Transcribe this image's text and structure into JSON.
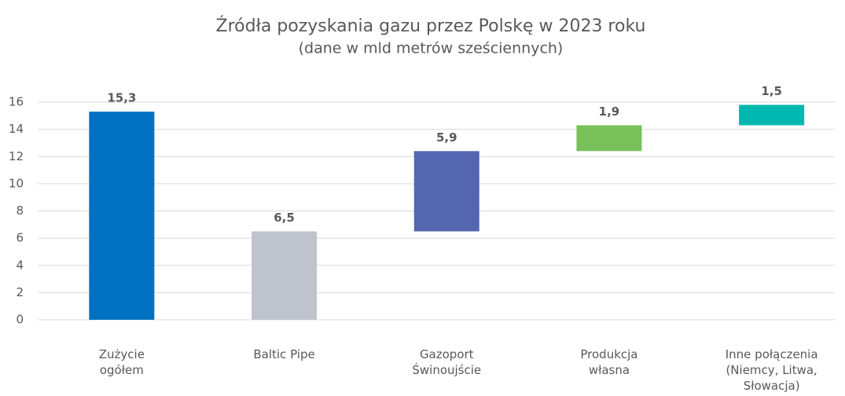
{
  "chart_data": {
    "type": "waterfall",
    "title": "Źródła pozyskania gazu przez Polskę w 2023 roku",
    "subtitle": "(dane w mld metrów sześciennych)",
    "categories": [
      [
        "Zużycie",
        "ogółem"
      ],
      [
        "Baltic Pipe"
      ],
      [
        "Gazoport",
        "Świnoujście"
      ],
      [
        "Produkcja",
        "własna"
      ],
      [
        "Inne połączenia",
        "(Niemcy, Litwa,",
        "Słowacja)"
      ]
    ],
    "values": [
      15.3,
      6.5,
      5.9,
      1.9,
      1.5
    ],
    "value_labels": [
      "15,3",
      "6,5",
      "5,9",
      "1,9",
      "1,5"
    ],
    "measures": [
      "absolute",
      "relative",
      "relative",
      "relative",
      "relative"
    ],
    "colors": [
      "#0070c0",
      "#bfc3cb",
      "#5566b0",
      "#77c05a",
      "#00b8b0"
    ],
    "ylim": [
      0,
      16
    ],
    "yticks": [
      0,
      2,
      4,
      6,
      8,
      10,
      12,
      14,
      16
    ],
    "grid": true
  }
}
